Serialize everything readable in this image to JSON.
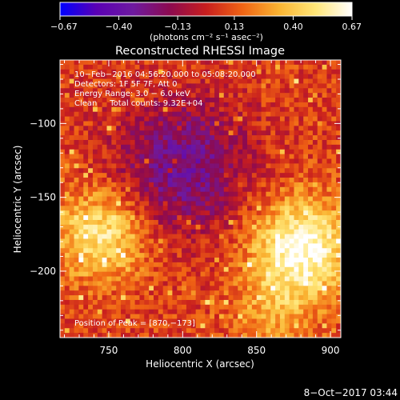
{
  "chart_data": {
    "type": "heatmap",
    "title": "Reconstructed RHESSI Image",
    "xlabel": "Heliocentric X (arcsec)",
    "ylabel": "Heliocentric Y (arcsec)",
    "xlim": [
      717,
      907
    ],
    "ylim": [
      -245,
      -57
    ],
    "x_ticks": [
      750,
      800,
      850,
      900
    ],
    "x_tick_labels": [
      "750",
      "800",
      "850",
      "900"
    ],
    "y_ticks": [
      -100,
      -150,
      -200
    ],
    "y_tick_labels": [
      "−100",
      "−150",
      "−200"
    ],
    "grid": false,
    "colorbar": {
      "colormap": "IDL rainbow-like (blue → purple → red → orange → yellow → white)",
      "min": -0.67,
      "max": 0.67,
      "tick_values": [
        -0.67,
        -0.4,
        -0.13,
        0.13,
        0.4,
        0.67
      ],
      "tick_labels": [
        "−0.67",
        "−0.40",
        "−0.13",
        "0.13",
        "0.40",
        "0.67"
      ],
      "units_text": "(photons cm⁻² s⁻¹ asec⁻²)",
      "stops": [
        "#0000ff",
        "#5a00b4",
        "#6e1aa0",
        "#8c0a50",
        "#c81e1e",
        "#f06414",
        "#fab432",
        "#ffe678",
        "#ffffff"
      ]
    },
    "annotations": [
      "10−Feb−2016 04:56:20.000 to 05:08:20.000",
      "Detectors: 1F 5F 7F, Att 0",
      "Energy Range: 3.0 − 6.0 keV",
      "Clean     Total counts: 9.32E+04"
    ],
    "peak_label": "Position of Peak = [870,−173]",
    "peak": [
      870,
      -173
    ],
    "sources": [
      {
        "x": 880,
        "y": -185,
        "amplitude": 0.6,
        "sigma": 24
      },
      {
        "x": 745,
        "y": -175,
        "amplitude": 0.45,
        "sigma": 22
      },
      {
        "x": 860,
        "y": -230,
        "amplitude": 0.2,
        "sigma": 18
      },
      {
        "x": 800,
        "y": -130,
        "amplitude": -0.4,
        "sigma": 32
      }
    ],
    "background_level": 0.08,
    "noise_amplitude": 0.13
  },
  "footer": {
    "timestamp": "8−Oct−2017 03:44"
  }
}
